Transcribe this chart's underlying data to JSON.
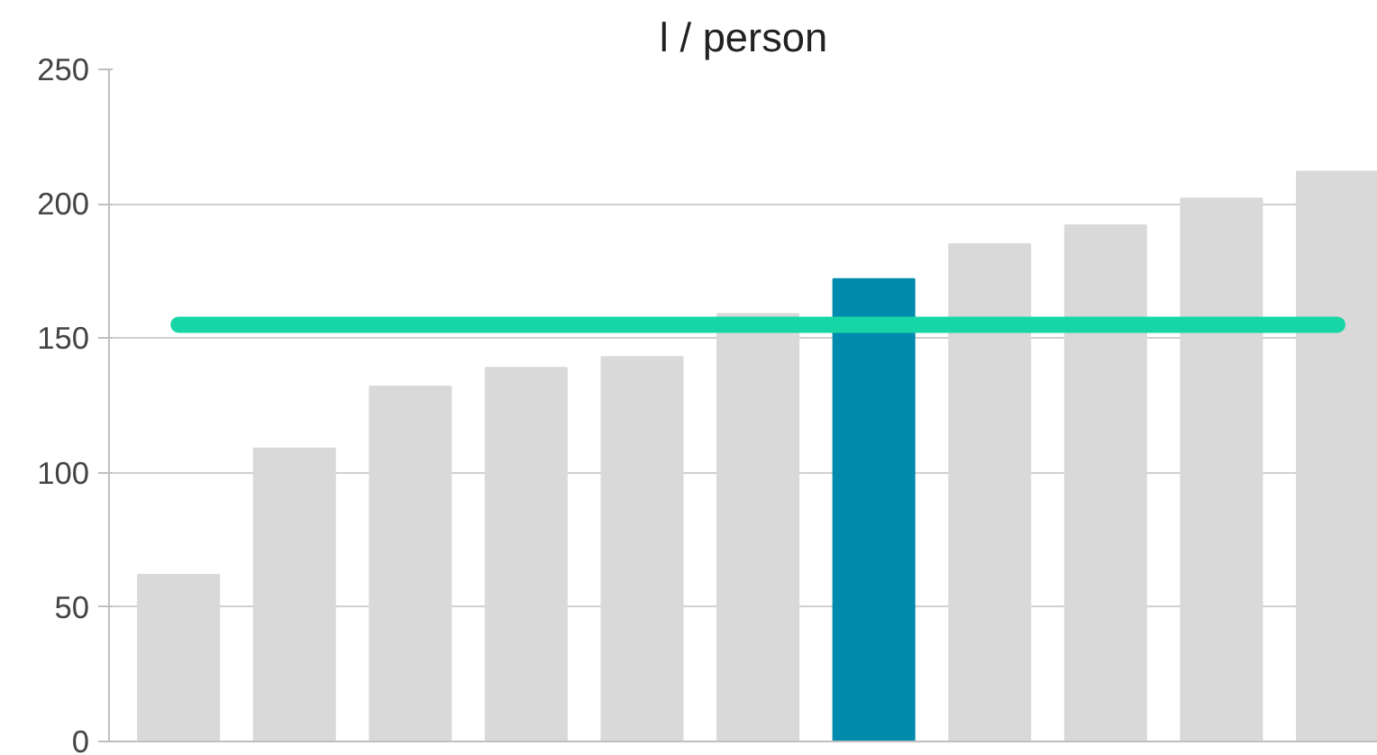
{
  "chart_data": {
    "type": "bar",
    "title": "l / person",
    "categories": [
      null,
      null,
      null,
      null,
      null,
      null,
      null,
      null,
      null,
      null,
      null
    ],
    "values": [
      62,
      109,
      132,
      139,
      143,
      159,
      172,
      185,
      192,
      202,
      212
    ],
    "colors": [
      "#d9d9d9",
      "#d9d9d9",
      "#d9d9d9",
      "#d9d9d9",
      "#d9d9d9",
      "#d9d9d9",
      "#008aad",
      "#d9d9d9",
      "#d9d9d9",
      "#d9d9d9",
      "#d9d9d9"
    ],
    "ylim": [
      0,
      250
    ],
    "yticks": [
      0,
      50,
      100,
      150,
      200,
      250
    ],
    "grid": "y",
    "ref_lines": [
      {
        "axis": "y",
        "value": 155,
        "label": null,
        "color": "#17d6a5"
      }
    ]
  }
}
